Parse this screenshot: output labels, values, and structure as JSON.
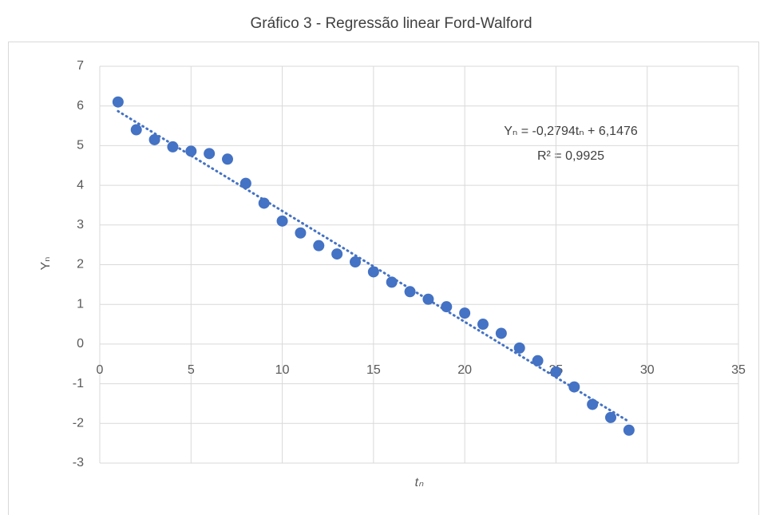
{
  "chart_data": {
    "type": "scatter",
    "title": "Gráfico 3 - Regressão linear Ford-Walford",
    "x_label": "tₙ",
    "y_label": "Yₙ",
    "series": [
      {
        "name": "Yₙ",
        "color": "#4472c4",
        "x": [
          1,
          2,
          3,
          4,
          5,
          6,
          7,
          8,
          9,
          10,
          11,
          12,
          13,
          14,
          15,
          16,
          17,
          18,
          19,
          20,
          21,
          22,
          23,
          24,
          25,
          26,
          27,
          28,
          29
        ],
        "values": [
          6.1,
          5.4,
          5.15,
          4.97,
          4.86,
          4.8,
          4.66,
          4.05,
          3.55,
          3.1,
          2.8,
          2.48,
          2.27,
          2.07,
          1.82,
          1.56,
          1.32,
          1.13,
          0.94,
          0.78,
          0.5,
          0.27,
          -0.1,
          -0.42,
          -0.7,
          -1.08,
          -1.52,
          -1.85,
          -2.17
        ]
      }
    ],
    "trendline": {
      "slope": -0.2794,
      "intercept": 6.1476,
      "color": "#4472c4",
      "label": "Yₙ = -0,2794tₙ + 6,1476",
      "r2_label": "R² = 0,9925"
    },
    "xlim": [
      0,
      35
    ],
    "xticks": [
      0,
      5,
      10,
      15,
      20,
      25,
      30,
      35
    ],
    "ylim": [
      -3,
      7
    ],
    "yticks": [
      -3,
      -2,
      -1,
      0,
      1,
      2,
      3,
      4,
      5,
      6,
      7
    ],
    "grid": true
  }
}
